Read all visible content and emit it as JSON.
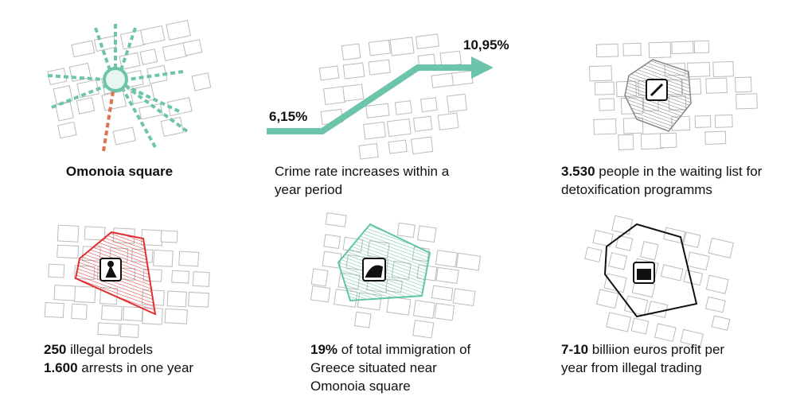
{
  "panels": [
    {
      "title": "Omonoia square"
    },
    {
      "start_label": "6,15%",
      "end_label": "10,95%",
      "caption": "Crime rate increases within a year period"
    },
    {
      "lines": [
        {
          "highlight": "3.530",
          "text": "people in the waiting list for detoxification programms"
        }
      ]
    },
    {
      "lines": [
        {
          "highlight": "250",
          "text": "illegal brodels"
        },
        {
          "highlight": "1.600",
          "text": "arrests in one year"
        }
      ]
    },
    {
      "lines": [
        {
          "highlight": "19%",
          "text": "of total immigration of Greece situated near Omonoia square"
        }
      ]
    },
    {
      "lines": [
        {
          "highlight": "7-10",
          "text": "billiion euros profit per year from illegal trading"
        }
      ]
    }
  ]
}
